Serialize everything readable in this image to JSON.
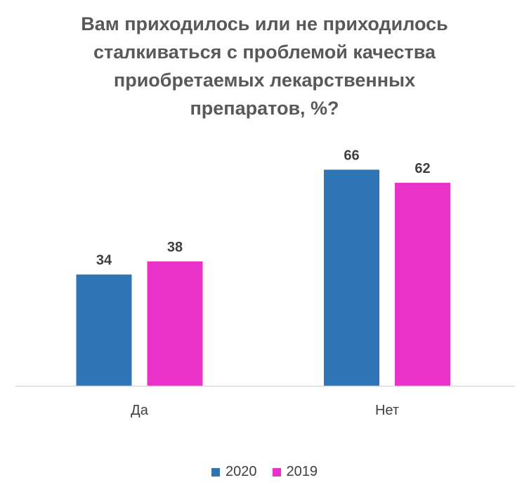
{
  "chart_data": {
    "type": "bar",
    "title_lines": [
      "Вам приходилось или не приходилось",
      "сталкиваться с проблемой качества",
      "приобретаемых лекарственных",
      "препаратов, %?"
    ],
    "categories": [
      "Да",
      "Нет"
    ],
    "series": [
      {
        "name": "2020",
        "values": [
          34,
          66
        ],
        "color": "#2E75B6"
      },
      {
        "name": "2019",
        "values": [
          38,
          62
        ],
        "color": "#E832C8"
      }
    ],
    "ylim": [
      0,
      100
    ],
    "grid": false,
    "legend_position": "bottom",
    "axis_color": "#D9D9D9",
    "label_color": "#404040"
  }
}
